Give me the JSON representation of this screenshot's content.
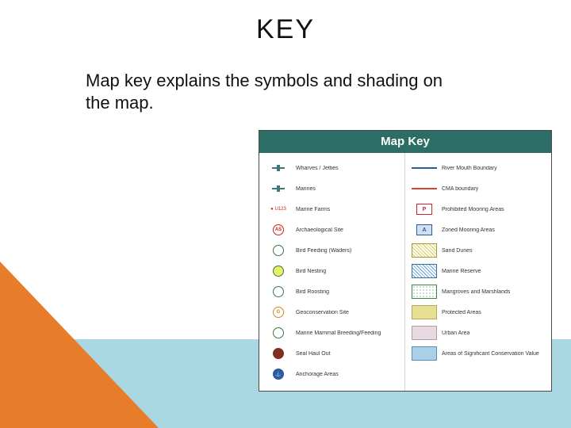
{
  "slide": {
    "title": "KEY",
    "subtitle": "Map key explains the symbols and shading on the map.",
    "title_fontsize": 34,
    "subtitle_fontsize": 22,
    "background": "#ffffff",
    "band_blue_color": "#a9d8e2",
    "band_orange_color": "#e77c2a"
  },
  "mapkey": {
    "header": "Map Key",
    "header_bg": "#2c6e66",
    "header_color": "#ffffff",
    "panel_border": "#4b4b4b",
    "left": [
      {
        "label": "Wharves / Jetties",
        "kind": "icon",
        "color": "#3b7a7a"
      },
      {
        "label": "Marines",
        "kind": "icon",
        "color": "#3b7a7a"
      },
      {
        "label": "Marine Farms",
        "kind": "dot-label",
        "text": "U123",
        "color": "#cc2222"
      },
      {
        "label": "Archaeological Site",
        "kind": "circle-badge",
        "text": "AS",
        "ring": "#cc2222",
        "fill": "#ffffff"
      },
      {
        "label": "Bird Feeding (Waders)",
        "kind": "circle-badge",
        "text": "",
        "ring": "#3a7a44",
        "fill": "#ffffff"
      },
      {
        "label": "Bird Nesting",
        "kind": "circle-badge",
        "text": "",
        "ring": "#3a7a44",
        "fill": "#e6f06a"
      },
      {
        "label": "Bird Roosting",
        "kind": "circle-badge",
        "text": "",
        "ring": "#3a7a44",
        "fill": "#ffffff"
      },
      {
        "label": "Geoconservation Site",
        "kind": "circle-badge",
        "text": "G",
        "ring": "#cc8a22",
        "fill": "#ffffff"
      },
      {
        "label": "Marine Mammal Breeding/Feeding",
        "kind": "circle-badge",
        "text": "",
        "ring": "#3a7a44",
        "fill": "#ffffff"
      },
      {
        "label": "Seal Haul Out",
        "kind": "circle-badge",
        "text": "",
        "ring": "#803020",
        "fill": "#803020"
      },
      {
        "label": "Anchorage Areas",
        "kind": "circle-badge",
        "text": "⚓",
        "ring": "#2a5aa0",
        "fill": "#2a5aa0"
      }
    ],
    "right": [
      {
        "label": "River Mouth Boundary",
        "kind": "line",
        "color": "#2a5aa0",
        "width": 2,
        "dash": "solid"
      },
      {
        "label": "CMA boundary",
        "kind": "line",
        "color": "#e04030",
        "width": 2,
        "dash": "solid"
      },
      {
        "label": "Prohibited Mooring Areas",
        "kind": "pbox",
        "text": "P",
        "border": "#cc2233"
      },
      {
        "label": "Zoned Mooring Areas",
        "kind": "abox",
        "text": "A",
        "fill": "#cfe0f2",
        "border": "#2a5aa0"
      },
      {
        "label": "Sand Dunes",
        "kind": "hatch",
        "color": "#d8c848",
        "border": "#a89830"
      },
      {
        "label": "Marine Reserve",
        "kind": "hatch",
        "color": "#5aa0d8",
        "border": "#3a70a0"
      },
      {
        "label": "Mangroves and Marshlands",
        "kind": "stipple",
        "color": "#3a8a44",
        "border": "#3a8a44"
      },
      {
        "label": "Protected Areas",
        "kind": "solid-box",
        "fill": "#e8e090",
        "border": "#b0a860"
      },
      {
        "label": "Urban Area",
        "kind": "solid-box",
        "fill": "#e8d8e0",
        "border": "#b898a8"
      },
      {
        "label": "Areas of Significant Conservation Value",
        "kind": "solid-box",
        "fill": "#a8d0e8",
        "border": "#5a90b8"
      }
    ]
  }
}
